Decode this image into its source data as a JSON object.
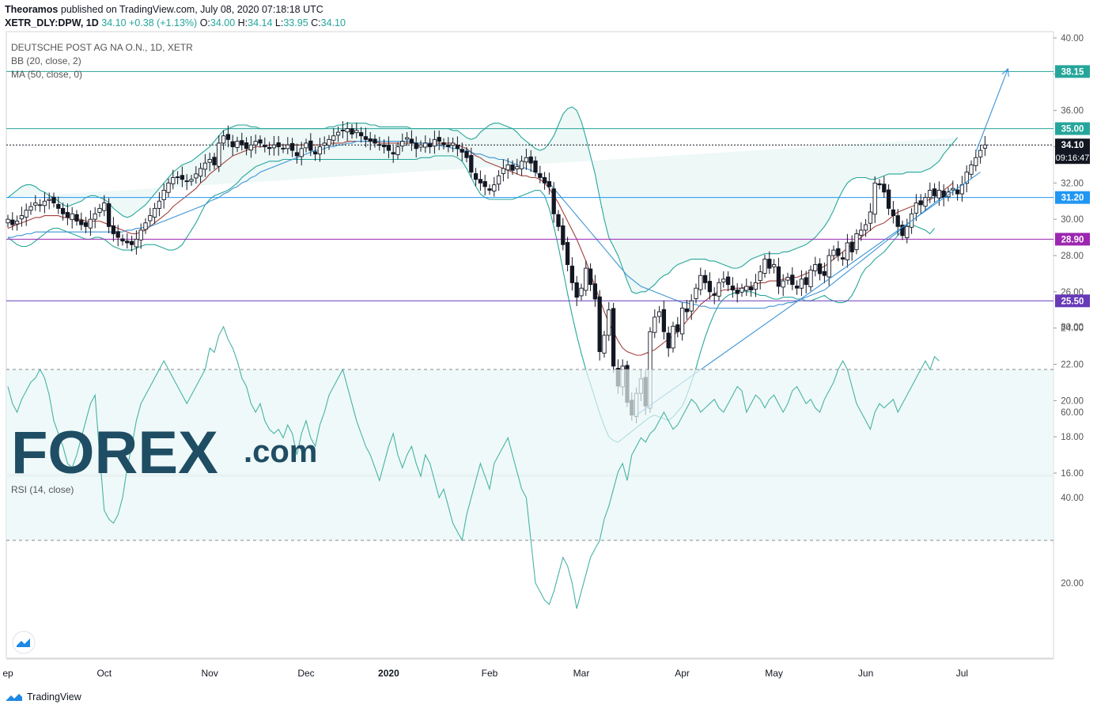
{
  "header": {
    "publisher": "Theoramos",
    "published_text": "published on TradingView.com, July 08, 2020 07:18:18 UTC",
    "symbol": "XETR_DLY:DPW, 1D",
    "last": "34.10",
    "change": "+0.38 (+1.13%)",
    "o_label": "O:",
    "o": "34.00",
    "h_label": "H:",
    "h": "34.14",
    "l_label": "L:",
    "l": "33.95",
    "c_label": "C:",
    "c": "34.10"
  },
  "legend": {
    "title": "DEUTSCHE POST AG NA O.N., 1D, XETR",
    "bb": "BB (20, close, 2)",
    "ma": "MA (50, close, 0)",
    "rsi": "RSI (14, close)"
  },
  "price_labels": {
    "last": "34.10",
    "countdown": "09:16:47"
  },
  "levels": [
    {
      "value": 38.15,
      "label": "38.15",
      "color": "#26a69a"
    },
    {
      "value": 35.0,
      "label": "35.00",
      "color": "#26a69a"
    },
    {
      "value": 31.2,
      "label": "31.20",
      "color": "#2196f3"
    },
    {
      "value": 28.9,
      "label": "28.90",
      "color": "#9c27b0"
    },
    {
      "value": 25.5,
      "label": "25.50",
      "color": "#673ab7"
    }
  ],
  "logo": {
    "text": "FOREX",
    "suffix": ".com"
  },
  "footer": {
    "brand": "TradingView"
  },
  "chart_data": {
    "type": "candlestick",
    "price_axis": {
      "min": 16,
      "max": 40,
      "ticks": [
        16,
        18,
        20,
        22,
        24,
        26,
        28,
        30,
        32,
        34,
        36,
        38,
        40
      ],
      "tick_labels": [
        "16.00",
        "18.00",
        "20.00",
        "22.00",
        "24.00",
        "26.00",
        "28.00",
        "30.00",
        "32.00",
        "34.00",
        "36.00",
        "38.00",
        "40.00"
      ]
    },
    "rsi_axis": {
      "min": 0,
      "max": 100,
      "ticks": [
        20,
        40,
        60,
        80
      ],
      "tick_labels": [
        "20.00",
        "40.00",
        "60.00",
        "80.00"
      ],
      "bands": [
        30,
        70
      ]
    },
    "time_labels": [
      {
        "label": "ep",
        "bar": 0
      },
      {
        "label": "Oct",
        "bar": 21
      },
      {
        "label": "Nov",
        "bar": 44
      },
      {
        "label": "Dec",
        "bar": 65
      },
      {
        "label": "2020",
        "bar": 83
      },
      {
        "label": "Feb",
        "bar": 105
      },
      {
        "label": "Mar",
        "bar": 125
      },
      {
        "label": "Apr",
        "bar": 147
      },
      {
        "label": "May",
        "bar": 167
      },
      {
        "label": "Jun",
        "bar": 187
      },
      {
        "label": "Jul",
        "bar": 208
      }
    ],
    "close": [
      30.0,
      29.7,
      29.9,
      30.2,
      30.5,
      30.7,
      30.9,
      30.8,
      31.0,
      31.1,
      30.9,
      30.6,
      30.3,
      30.1,
      30.3,
      29.9,
      29.7,
      29.6,
      30.0,
      30.3,
      30.6,
      30.9,
      29.6,
      29.2,
      29.0,
      28.8,
      28.7,
      28.6,
      28.9,
      29.4,
      29.8,
      30.2,
      30.6,
      31.0,
      31.6,
      32.0,
      32.3,
      32.3,
      32.2,
      32.1,
      32.2,
      32.5,
      32.8,
      33.1,
      33.3,
      33.0,
      34.2,
      34.6,
      34.4,
      34.0,
      34.3,
      34.1,
      33.9,
      34.1,
      34.3,
      34.2,
      34.0,
      33.9,
      34.1,
      34.0,
      33.9,
      34.1,
      33.8,
      33.5,
      33.9,
      34.2,
      33.8,
      33.6,
      34.0,
      34.2,
      34.4,
      34.6,
      34.8,
      34.9,
      35.0,
      34.7,
      34.9,
      34.6,
      34.4,
      34.3,
      34.2,
      34.1,
      34.0,
      33.8,
      33.6,
      34.0,
      34.3,
      34.5,
      34.2,
      33.9,
      34.1,
      34.2,
      34.0,
      34.4,
      34.3,
      34.1,
      34.0,
      34.2,
      33.9,
      33.7,
      33.4,
      32.6,
      32.2,
      32.0,
      31.8,
      31.6,
      31.9,
      32.4,
      32.8,
      33.0,
      32.7,
      32.9,
      33.2,
      33.4,
      33.1,
      32.6,
      32.3,
      32.0,
      31.8,
      30.3,
      29.6,
      28.6,
      27.5,
      26.5,
      25.7,
      26.2,
      27.3,
      26.4,
      25.6,
      22.7,
      23.6,
      25.0,
      21.9,
      20.8,
      21.9,
      19.9,
      19.2,
      20.4,
      21.2,
      19.7,
      23.8,
      24.6,
      24.9,
      23.8,
      22.9,
      24.1,
      23.8,
      25.1,
      24.9,
      25.5,
      26.2,
      26.9,
      26.5,
      26.0,
      25.8,
      26.5,
      26.7,
      26.4,
      26.1,
      25.9,
      26.2,
      26.3,
      26.1,
      26.5,
      27.1,
      27.8,
      27.3,
      27.5,
      26.3,
      26.6,
      26.8,
      26.4,
      26.2,
      26.7,
      26.4,
      27.2,
      27.5,
      27.0,
      26.9,
      28.0,
      28.3,
      28.0,
      27.8,
      28.7,
      28.2,
      29.2,
      29.4,
      29.7,
      30.4,
      32.0,
      31.9,
      31.5,
      30.6,
      30.2,
      29.6,
      29.1,
      29.6,
      30.3,
      30.9,
      30.8,
      31.2,
      31.6,
      31.3,
      31.6,
      31.2,
      31.5,
      31.7,
      31.4,
      31.9,
      32.6,
      33.0,
      33.4,
      33.8,
      34.1
    ],
    "bb_upper": [
      31.2,
      31.4,
      31.6,
      31.8,
      31.9,
      31.9,
      31.8,
      31.6,
      31.5,
      31.3,
      31.2,
      31.0,
      30.8,
      30.7,
      30.8,
      30.9,
      31.0,
      31.2,
      31.3,
      31.3,
      31.2,
      31.1,
      30.9,
      30.6,
      30.4,
      30.2,
      30.1,
      30.2,
      30.4,
      30.6,
      30.8,
      31.1,
      31.4,
      31.7,
      32.0,
      32.3,
      32.6,
      32.8,
      33.0,
      33.1,
      33.2,
      33.4,
      33.6,
      33.8,
      34.0,
      34.3,
      34.6,
      34.9,
      35.0,
      35.1,
      35.2,
      35.2,
      35.2,
      35.1,
      35.1,
      35.0,
      35.0,
      35.0,
      35.0,
      35.0,
      35.0,
      35.0,
      35.0,
      35.0,
      35.0,
      35.0,
      35.0,
      35.0,
      35.0,
      35.0,
      35.1,
      35.1,
      35.2,
      35.2,
      35.3,
      35.3,
      35.3,
      35.3,
      35.3,
      35.2,
      35.2,
      35.1,
      35.1,
      35.1,
      35.1,
      35.1,
      35.1,
      35.1,
      35.0,
      35.0,
      35.0,
      35.0,
      35.0,
      35.0,
      35.0,
      35.0,
      35.0,
      34.9,
      34.9,
      34.7,
      34.5,
      34.4,
      34.5,
      34.8,
      35.0,
      35.2,
      35.3,
      35.3,
      35.2,
      35.1,
      35.0,
      34.8,
      34.5,
      34.3,
      34.1,
      33.9,
      33.8,
      33.9,
      34.2,
      34.6,
      35.2,
      35.8,
      36.1,
      36.2,
      36.0,
      35.4,
      34.5,
      33.5,
      32.5,
      31.2,
      30.0,
      29.0,
      28.5,
      28.0,
      27.3,
      26.6,
      26.0,
      25.9,
      26.0,
      26.0,
      26.2,
      26.4,
      26.7,
      26.9,
      27.0,
      27.3,
      27.5,
      27.6,
      27.7,
      27.8,
      27.8,
      27.8,
      27.8,
      27.7,
      27.7,
      27.6,
      27.5,
      27.4,
      27.3,
      27.3,
      27.4,
      27.6,
      27.8,
      27.9,
      28.0,
      28.1,
      28.1,
      28.1,
      28.1,
      28.2,
      28.2,
      28.3,
      28.4,
      28.5,
      28.6,
      28.8,
      29.0,
      29.3,
      29.6,
      30.0,
      30.5,
      31.1,
      31.6,
      32.0,
      32.2,
      32.3,
      32.3,
      32.3,
      32.2,
      32.2,
      32.3,
      32.4,
      32.5,
      32.5,
      32.5,
      32.5,
      32.6,
      32.6,
      32.6,
      32.6,
      32.7,
      32.8,
      33.0,
      33.2,
      33.6,
      33.9,
      34.2,
      34.5
    ],
    "bb_lower": [
      29.0,
      28.8,
      28.6,
      28.5,
      28.5,
      28.6,
      28.8,
      29.0,
      29.2,
      29.4,
      29.5,
      29.5,
      29.4,
      29.3,
      29.2,
      29.1,
      29.0,
      28.9,
      28.9,
      29.0,
      29.0,
      28.9,
      28.7,
      28.5,
      28.4,
      28.3,
      28.3,
      28.3,
      28.4,
      28.5,
      28.6,
      28.6,
      28.6,
      28.5,
      28.4,
      28.3,
      28.3,
      28.4,
      28.6,
      29.0,
      29.4,
      29.8,
      30.3,
      30.8,
      31.1,
      31.3,
      31.4,
      31.5,
      31.6,
      31.8,
      32.0,
      32.3,
      32.5,
      32.7,
      32.9,
      33.0,
      33.1,
      33.2,
      33.2,
      33.2,
      33.3,
      33.3,
      33.3,
      33.3,
      33.3,
      33.3,
      33.3,
      33.3,
      33.3,
      33.3,
      33.3,
      33.3,
      33.3,
      33.3,
      33.3,
      33.3,
      33.3,
      33.3,
      33.3,
      33.3,
      33.3,
      33.3,
      33.3,
      33.3,
      33.3,
      33.3,
      33.3,
      33.3,
      33.3,
      33.3,
      33.4,
      33.4,
      33.4,
      33.5,
      33.5,
      33.5,
      33.5,
      33.5,
      33.4,
      33.2,
      32.8,
      32.3,
      31.8,
      31.4,
      31.2,
      31.1,
      31.1,
      31.1,
      31.1,
      31.1,
      31.1,
      31.2,
      31.3,
      31.4,
      31.5,
      31.6,
      31.6,
      31.3,
      30.6,
      29.6,
      28.5,
      27.2,
      25.9,
      24.7,
      23.6,
      22.6,
      21.7,
      20.9,
      20.1,
      19.3,
      18.6,
      18.0,
      17.8,
      17.7,
      17.9,
      18.1,
      18.3,
      18.5,
      18.7,
      18.9,
      19.1,
      19.2,
      19.1,
      19.0,
      18.9,
      19.1,
      19.4,
      19.7,
      20.3,
      21.0,
      21.8,
      22.7,
      23.5,
      24.2,
      24.8,
      25.3,
      25.6,
      25.8,
      25.9,
      26.0,
      26.1,
      26.0,
      26.0,
      25.9,
      25.8,
      25.8,
      25.7,
      25.6,
      25.6,
      25.7,
      25.7,
      25.7,
      25.6,
      25.6,
      25.5,
      25.5,
      25.6,
      25.7,
      25.8,
      25.6,
      25.5,
      25.4,
      25.4,
      25.5,
      25.8,
      26.3,
      26.9,
      27.3,
      27.5,
      27.8,
      28.0,
      28.2,
      28.5,
      28.8,
      29.1,
      29.4,
      29.6,
      29.7,
      29.6,
      29.5,
      29.4,
      29.2,
      29.5
    ],
    "ma20": [
      29.5,
      29.6,
      29.7,
      29.8,
      29.9,
      30.0,
      30.1,
      30.1,
      30.2,
      30.2,
      30.2,
      30.2,
      30.1,
      30.1,
      30.0,
      30.0,
      30.0,
      29.9,
      29.9,
      29.9,
      29.9,
      29.8,
      29.7,
      29.6,
      29.5,
      29.4,
      29.3,
      29.2,
      29.2,
      29.3,
      29.4,
      29.6,
      29.8,
      30.0,
      30.2,
      30.4,
      30.7,
      30.9,
      31.1,
      31.3,
      31.5,
      31.7,
      32.0,
      32.2,
      32.5,
      32.7,
      32.9,
      33.1,
      33.3,
      33.5,
      33.6,
      33.7,
      33.8,
      33.9,
      34.0,
      34.0,
      34.0,
      34.1,
      34.1,
      34.1,
      34.1,
      34.1,
      34.1,
      34.1,
      34.1,
      34.1,
      34.1,
      34.1,
      34.1,
      34.1,
      34.2,
      34.2,
      34.2,
      34.2,
      34.3,
      34.3,
      34.3,
      34.3,
      34.3,
      34.3,
      34.3,
      34.2,
      34.2,
      34.2,
      34.2,
      34.2,
      34.2,
      34.2,
      34.2,
      34.2,
      34.2,
      34.2,
      34.2,
      34.2,
      34.2,
      34.2,
      34.2,
      34.2,
      34.1,
      34.0,
      33.9,
      33.7,
      33.5,
      33.4,
      33.2,
      33.1,
      33.0,
      32.9,
      32.8,
      32.7,
      32.6,
      32.5,
      32.4,
      32.4,
      32.3,
      32.3,
      32.2,
      32.0,
      31.7,
      31.3,
      30.9,
      30.4,
      29.9,
      29.4,
      28.9,
      28.3,
      27.7,
      27.0,
      26.3,
      25.6,
      24.9,
      24.3,
      23.8,
      23.3,
      22.9,
      22.7,
      22.6,
      22.5,
      22.5,
      22.6,
      22.7,
      22.8,
      23.0,
      23.2,
      23.4,
      23.6,
      23.8,
      24.1,
      24.4,
      24.7,
      25.0,
      25.3,
      25.5,
      25.7,
      25.9,
      26.0,
      26.1,
      26.1,
      26.2,
      26.2,
      26.2,
      26.3,
      26.3,
      26.4,
      26.5,
      26.5,
      26.6,
      26.6,
      26.6,
      26.7,
      26.7,
      26.8,
      26.8,
      26.9,
      27.0,
      27.1,
      27.2,
      27.3,
      27.4,
      27.6,
      27.8,
      28.0,
      28.2,
      28.4,
      28.6,
      28.8,
      29.0,
      29.2,
      29.4,
      29.6,
      29.7,
      29.8,
      30.0,
      30.2,
      30.4,
      30.5,
      30.6,
      30.7,
      30.8,
      30.9,
      31.0,
      31.1,
      31.2,
      31.4,
      31.6,
      31.8,
      32.0
    ],
    "ma50": [
      29.0,
      29.0,
      29.1,
      29.1,
      29.2,
      29.2,
      29.3,
      29.3,
      29.3,
      29.3,
      29.3,
      29.3,
      29.3,
      29.3,
      29.3,
      29.3,
      29.3,
      29.3,
      29.3,
      29.3,
      29.3,
      29.3,
      29.3,
      29.3,
      29.3,
      29.3,
      29.4,
      29.4,
      29.5,
      29.5,
      29.6,
      29.6,
      29.7,
      29.8,
      29.9,
      30.0,
      30.1,
      30.2,
      30.3,
      30.4,
      30.5,
      30.6,
      30.7,
      30.8,
      31.0,
      31.1,
      31.2,
      31.4,
      31.5,
      31.7,
      31.8,
      32.0,
      32.1,
      32.3,
      32.4,
      32.6,
      32.7,
      32.8,
      32.9,
      33.0,
      33.1,
      33.2,
      33.3,
      33.4,
      33.5,
      33.6,
      33.7,
      33.8,
      33.8,
      33.9,
      34.0,
      34.0,
      34.1,
      34.1,
      34.2,
      34.2,
      34.3,
      34.3,
      34.3,
      34.3,
      34.3,
      34.3,
      34.3,
      34.3,
      34.3,
      34.3,
      34.3,
      34.3,
      34.3,
      34.2,
      34.2,
      34.2,
      34.2,
      34.1,
      34.1,
      34.0,
      34.0,
      33.9,
      33.9,
      33.8,
      33.8,
      33.7,
      33.6,
      33.6,
      33.5,
      33.4,
      33.4,
      33.3,
      33.3,
      33.2,
      33.1,
      33.0,
      32.9,
      32.8,
      32.7,
      32.6,
      32.4,
      32.2,
      32.0,
      31.7,
      31.4,
      31.1,
      30.8,
      30.5,
      30.2,
      29.9,
      29.6,
      29.3,
      29.0,
      28.7,
      28.4,
      28.1,
      27.8,
      27.5,
      27.2,
      26.9,
      26.7,
      26.5,
      26.3,
      26.2,
      26.1,
      26.0,
      25.9,
      25.8,
      25.7,
      25.6,
      25.5,
      25.4,
      25.4,
      25.3,
      25.3,
      25.2,
      25.2,
      25.1,
      25.1,
      25.1,
      25.1,
      25.1,
      25.1,
      25.1,
      25.1,
      25.1,
      25.1,
      25.1,
      25.1,
      25.1,
      25.2,
      25.2,
      25.3,
      25.3,
      25.4,
      25.4,
      25.5,
      25.6,
      25.7,
      25.8,
      25.9,
      26.0,
      26.1,
      26.3,
      26.5,
      26.7,
      26.9,
      27.1,
      27.3,
      27.5,
      27.7,
      27.9,
      28.1,
      28.3,
      28.5,
      28.7,
      28.9,
      29.1,
      29.3,
      29.5,
      29.7,
      29.9,
      30.1,
      30.3,
      30.5,
      30.7,
      30.9,
      31.1,
      31.3,
      31.5,
      31.7
    ],
    "rsi": [
      66,
      62,
      60,
      63,
      65,
      67,
      68,
      70,
      68,
      64,
      58,
      55,
      52,
      48,
      47,
      50,
      54,
      58,
      62,
      64,
      50,
      37,
      35,
      34,
      36,
      40,
      47,
      52,
      58,
      62,
      64,
      66,
      68,
      70,
      72,
      70,
      68,
      66,
      64,
      62,
      64,
      66,
      68,
      70,
      75,
      74,
      78,
      80,
      77,
      75,
      72,
      68,
      66,
      62,
      60,
      62,
      58,
      56,
      55,
      56,
      54,
      57,
      55,
      50,
      55,
      58,
      54,
      52,
      57,
      60,
      64,
      66,
      68,
      70,
      66,
      62,
      58,
      55,
      52,
      50,
      47,
      44,
      48,
      52,
      55,
      50,
      47,
      50,
      52,
      48,
      45,
      50,
      48,
      44,
      40,
      42,
      38,
      34,
      32,
      30,
      36,
      40,
      44,
      48,
      45,
      42,
      48,
      50,
      52,
      54,
      50,
      46,
      42,
      40,
      30,
      20,
      18,
      16,
      15,
      18,
      22,
      26,
      24,
      20,
      14,
      18,
      22,
      26,
      28,
      30,
      35,
      38,
      42,
      46,
      48,
      44,
      50,
      52,
      54,
      53,
      55,
      56,
      58,
      60,
      58,
      56,
      57,
      59,
      61,
      63,
      62,
      60,
      61,
      62,
      63,
      61,
      60,
      62,
      64,
      66,
      65,
      60,
      62,
      64,
      63,
      61,
      63,
      64,
      62,
      60,
      62,
      65,
      66,
      64,
      62,
      63,
      61,
      60,
      63,
      65,
      67,
      70,
      72,
      70,
      66,
      62,
      60,
      58,
      56,
      60,
      62,
      61,
      62,
      63,
      60,
      62,
      64,
      66,
      68,
      70,
      72,
      70,
      73,
      72
    ],
    "trendlines": [
      {
        "from": {
          "bar": 137,
          "price": 19.2
        },
        "to": {
          "bar": 212,
          "price": 32.6
        }
      },
      {
        "from": {
          "bar": 211,
          "price": 33.7
        },
        "to": {
          "bar": 218,
          "price": 38.3
        }
      }
    ]
  }
}
